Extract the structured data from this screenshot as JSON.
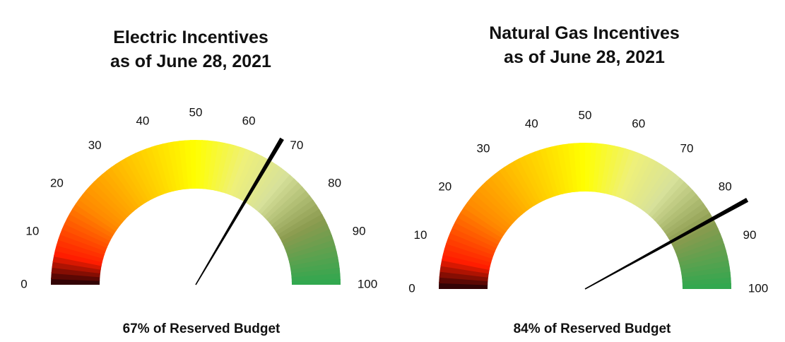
{
  "chart_data": [
    {
      "type": "gauge",
      "title": [
        "Electric Incentives",
        "as of June 28, 2021"
      ],
      "caption": "67% of Reserved Budget",
      "value": 67,
      "range": [
        0,
        100
      ],
      "tick_labels": [
        "0",
        "10",
        "20",
        "30",
        "40",
        "50",
        "60",
        "70",
        "80",
        "90",
        "100"
      ]
    },
    {
      "type": "gauge",
      "title": [
        "Natural Gas Incentives",
        "as of June 28, 2021"
      ],
      "caption": "84% of Reserved Budget",
      "value": 84,
      "range": [
        0,
        100
      ],
      "tick_labels": [
        "0",
        "10",
        "20",
        "30",
        "40",
        "50",
        "60",
        "70",
        "80",
        "90",
        "100"
      ]
    }
  ],
  "colors": {
    "dark": "#1a0006",
    "red": "#ff1d00",
    "orange": "#ff8a00",
    "amber": "#ffc400",
    "yellow": "#ffff00",
    "light_yellow": "#eef07a",
    "pale_green": "#d7e19a",
    "olive": "#8a9a4e",
    "green": "#2fa84f",
    "needle": "#000000"
  }
}
